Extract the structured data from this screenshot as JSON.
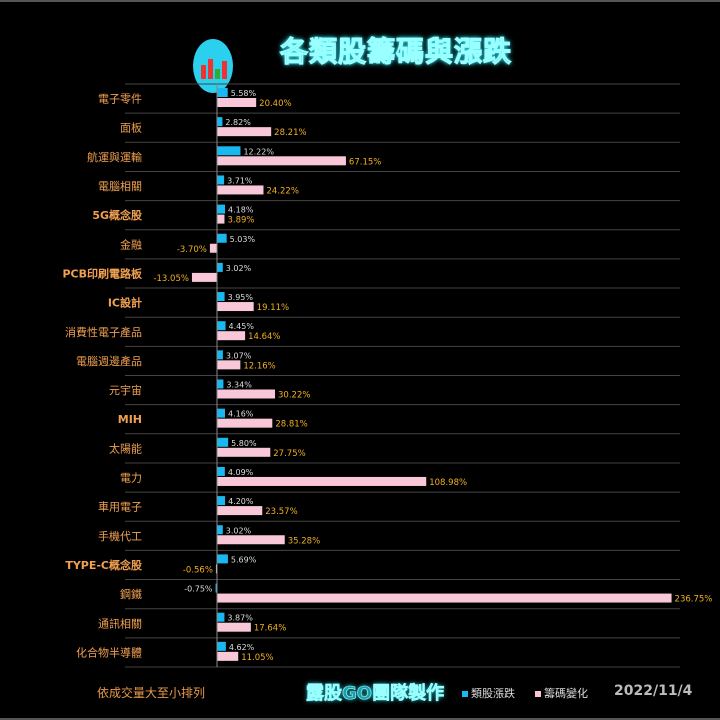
{
  "header": {
    "title": "各類股籌碼與漲跌",
    "logo_text": "露股GO"
  },
  "chart_data": {
    "type": "bar",
    "orientation": "horizontal",
    "categories": [
      "電子零件",
      "面板",
      "航運與運輸",
      "電腦相關",
      "5G概念股",
      "金融",
      "PCB印刷電路板",
      "IC設計",
      "消費性電子產品",
      "電腦週邊產品",
      "元宇宙",
      "MIH",
      "太陽能",
      "電力",
      "車用電子",
      "手機代工",
      "TYPE-C概念股",
      "鋼鐵",
      "通訊相關",
      "化合物半導體"
    ],
    "series": [
      {
        "name": "類股漲跌",
        "color": "#1ab8f0",
        "values": [
          5.58,
          2.82,
          12.22,
          3.71,
          4.18,
          5.03,
          3.02,
          3.95,
          4.45,
          3.07,
          3.34,
          4.16,
          5.8,
          4.09,
          4.2,
          3.02,
          5.69,
          -0.75,
          3.87,
          4.62
        ],
        "labels": [
          "5.58%",
          "2.82%",
          "12.22%",
          "3.71%",
          "4.18%",
          "5.03%",
          "3.02%",
          "3.95%",
          "4.45%",
          "3.07%",
          "3.34%",
          "4.16%",
          "5.80%",
          "4.09%",
          "4.20%",
          "3.02%",
          "5.69%",
          "-0.75%",
          "3.87%",
          "4.62%"
        ]
      },
      {
        "name": "籌碼變化",
        "color": "#f8c8d8",
        "values": [
          20.4,
          28.21,
          67.15,
          24.22,
          3.89,
          -3.7,
          -13.05,
          19.11,
          14.64,
          12.16,
          30.22,
          28.81,
          27.75,
          108.98,
          23.57,
          35.28,
          -0.56,
          236.75,
          17.64,
          11.05
        ],
        "labels": [
          "20.40%",
          "28.21%",
          "67.15%",
          "24.22%",
          "3.89%",
          "-3.70%",
          "-13.05%",
          "19.11%",
          "14.64%",
          "12.16%",
          "30.22%",
          "28.81%",
          "27.75%",
          "108.98%",
          "23.57%",
          "35.28%",
          "-0.56%",
          "236.75%",
          "17.64%",
          "11.05%"
        ]
      }
    ],
    "legend": "bottom-right",
    "grid": true
  },
  "footer": {
    "note": "依成交量大至小排列",
    "credit": "露股GO團隊製作",
    "legend": [
      "類股漲跌",
      "籌碼變化"
    ],
    "date": "2022/11/4"
  }
}
